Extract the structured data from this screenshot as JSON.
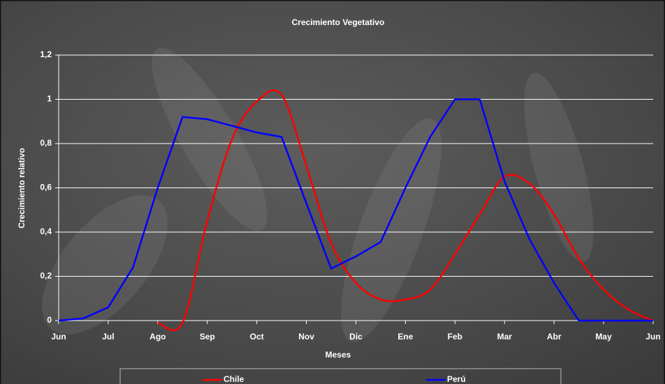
{
  "chart_data": {
    "type": "line",
    "title": "Crecimiento Vegetativo",
    "x_label": "Meses",
    "y_label": "Crecimiento relativo",
    "categories": [
      "Jun",
      null,
      "Jul",
      null,
      "Ago",
      null,
      "Sep",
      null,
      "Oct",
      null,
      "Nov",
      null,
      "Dic",
      null,
      "Ene",
      null,
      "Feb",
      null,
      "Mar",
      null,
      "Abr",
      null,
      "May",
      null,
      "Jun"
    ],
    "series": [
      {
        "name": "Chile",
        "color": "#ff0000",
        "smooth": true,
        "values": [
          null,
          null,
          null,
          null,
          -0.01,
          -0.01,
          0.45,
          0.82,
          0.99,
          1.02,
          0.7,
          0.35,
          0.17,
          0.095,
          0.095,
          0.14,
          0.3,
          0.48,
          0.65,
          0.62,
          0.48,
          0.28,
          0.14,
          0.05,
          0
        ]
      },
      {
        "name": "Perú",
        "color": "#0000ff",
        "smooth": false,
        "values": [
          0,
          0.01,
          0.06,
          0.24,
          0.6,
          0.92,
          0.91,
          0.88,
          0.85,
          0.83,
          0.53,
          0.235,
          0.29,
          0.355,
          0.6,
          0.83,
          1,
          1,
          0.63,
          0.37,
          0.17,
          0,
          0,
          0,
          0
        ]
      }
    ],
    "ylim": [
      0,
      1.2
    ],
    "yticks": [
      0,
      {
        "value": 0.2,
        "label": "0,2"
      },
      {
        "value": 0.4,
        "label": "0,4"
      },
      {
        "value": 0.6,
        "label": "0,6"
      },
      {
        "value": 0.8,
        "label": "0,8"
      },
      1,
      {
        "value": 1.2,
        "label": "1,2"
      }
    ],
    "grid": true,
    "legend": "bottom"
  }
}
